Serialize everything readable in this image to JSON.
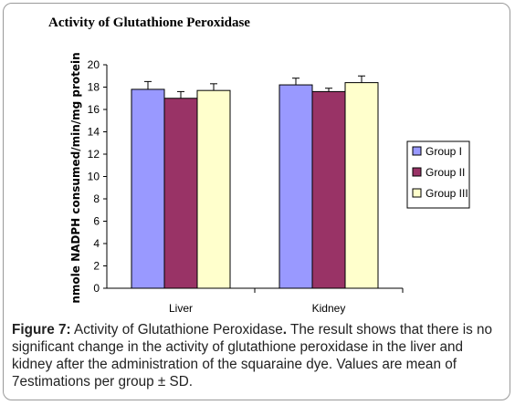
{
  "chart_data": {
    "type": "bar",
    "title": "Activity of Glutathione Peroxidase",
    "ylabel": "nmole NADPH consumed/min/mg protein",
    "xlabel": "",
    "categories": [
      "Liver",
      "Kidney"
    ],
    "ylim": [
      0,
      20
    ],
    "yticks": [
      0,
      2,
      4,
      6,
      8,
      10,
      12,
      14,
      16,
      18,
      20
    ],
    "series": [
      {
        "name": "Group I",
        "color": "#9999ff",
        "values": [
          17.8,
          18.2
        ],
        "errors": [
          0.7,
          0.6
        ]
      },
      {
        "name": "Group II",
        "color": "#993366",
        "values": [
          17.0,
          17.6
        ],
        "errors": [
          0.6,
          0.3
        ]
      },
      {
        "name": "Group III",
        "color": "#ffffcc",
        "values": [
          17.7,
          18.4
        ],
        "errors": [
          0.6,
          0.6
        ]
      }
    ],
    "grid": false,
    "legend": "right"
  },
  "caption": {
    "figure_label": "Figure 7:",
    "title": "Activity of Glutathione Peroxidase",
    "text": "The result shows that there is no significant change in the activity of glutathione peroxidase in the liver and kidney after the administration of the squaraine dye. Values are mean of 7estimations per group ± SD."
  }
}
